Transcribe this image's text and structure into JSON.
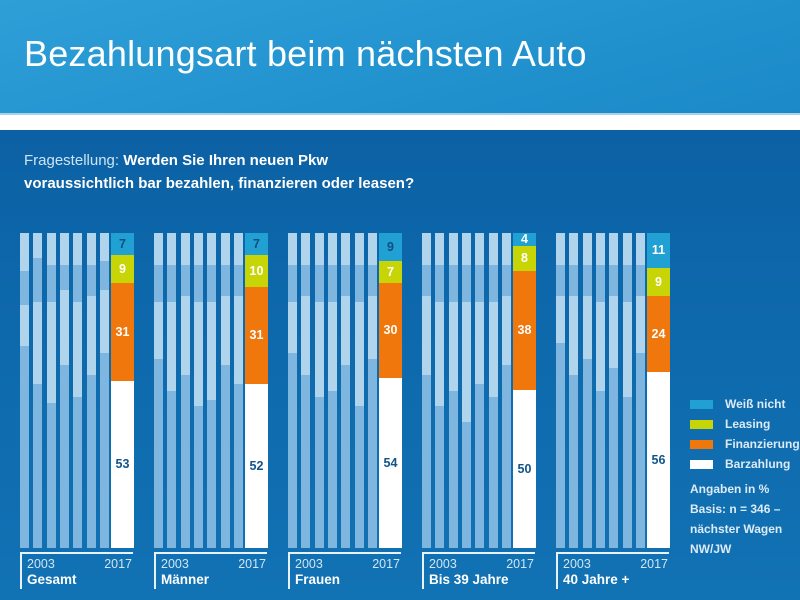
{
  "title": "Bezahlungsart beim nächsten Auto",
  "question": {
    "prefix": "Fragestellung:",
    "bold_line1": "Werden Sie Ihren neuen Pkw",
    "bold_line2": "voraussichtlich bar bezahlen, finanzieren oder leasen?"
  },
  "chart_data": {
    "type": "bar",
    "stacked": true,
    "unit": "%",
    "categories": [
      "Gesamt",
      "Männer",
      "Frauen",
      "Bis 39 Jahre",
      "40 Jahre +"
    ],
    "axis": {
      "start_year": "2003",
      "end_year": "2017"
    },
    "series": [
      {
        "name": "Weiß nicht",
        "color": "#21a1d3",
        "values": [
          7,
          7,
          9,
          4,
          11
        ],
        "label_colors": [
          "#0e4e81",
          "#0e4e81",
          "#0e4e81",
          "#ffffff",
          "#ffffff"
        ]
      },
      {
        "name": "Leasing",
        "color": "#c7d406",
        "values": [
          9,
          10,
          7,
          8,
          9
        ],
        "label_colors": [
          "#ffffff",
          "#ffffff",
          "#ffffff",
          "#ffffff",
          "#ffffff"
        ]
      },
      {
        "name": "Finanzierung",
        "color": "#f0770b",
        "values": [
          31,
          31,
          30,
          38,
          24
        ],
        "label_colors": [
          "#ffffff",
          "#ffffff",
          "#ffffff",
          "#ffffff",
          "#ffffff"
        ]
      },
      {
        "name": "Barzahlung",
        "color": "#ffffff",
        "values": [
          53,
          52,
          54,
          50,
          56
        ],
        "label_colors": [
          "#11548a",
          "#11548a",
          "#11548a",
          "#11548a",
          "#11548a"
        ]
      }
    ],
    "history_years_shown_as_muted_bars": [
      "2003",
      "2005",
      "2007",
      "2009",
      "2011",
      "2013",
      "2015"
    ],
    "history_bars": {
      "Gesamt": [
        [
          64,
          13,
          11,
          12
        ],
        [
          52,
          26,
          14,
          8
        ],
        [
          46,
          32,
          12,
          10
        ],
        [
          58,
          24,
          8,
          10
        ],
        [
          48,
          30,
          12,
          10
        ],
        [
          55,
          25,
          10,
          10
        ],
        [
          62,
          20,
          9,
          9
        ]
      ],
      "Männer": [
        [
          60,
          18,
          12,
          10
        ],
        [
          50,
          28,
          12,
          10
        ],
        [
          55,
          25,
          10,
          10
        ],
        [
          45,
          33,
          12,
          10
        ],
        [
          47,
          31,
          12,
          10
        ],
        [
          58,
          22,
          10,
          10
        ],
        [
          52,
          28,
          10,
          10
        ]
      ],
      "Frauen": [
        [
          62,
          16,
          12,
          10
        ],
        [
          55,
          25,
          10,
          10
        ],
        [
          48,
          30,
          12,
          10
        ],
        [
          50,
          28,
          12,
          10
        ],
        [
          58,
          22,
          10,
          10
        ],
        [
          45,
          33,
          12,
          10
        ],
        [
          60,
          20,
          10,
          10
        ]
      ],
      "Bis 39 Jahre": [
        [
          55,
          25,
          10,
          10
        ],
        [
          45,
          33,
          12,
          10
        ],
        [
          50,
          28,
          12,
          10
        ],
        [
          40,
          38,
          12,
          10
        ],
        [
          52,
          26,
          12,
          10
        ],
        [
          48,
          30,
          12,
          10
        ],
        [
          58,
          22,
          10,
          10
        ]
      ],
      "40 Jahre +": [
        [
          65,
          15,
          10,
          10
        ],
        [
          55,
          25,
          10,
          10
        ],
        [
          60,
          20,
          10,
          10
        ],
        [
          50,
          28,
          12,
          10
        ],
        [
          57,
          23,
          10,
          10
        ],
        [
          48,
          30,
          12,
          10
        ],
        [
          62,
          18,
          10,
          10
        ]
      ]
    },
    "history_bar_colors": {
      "medium": "#7fb6df",
      "light": "#b1d4ed"
    }
  },
  "legend": [
    {
      "label": "Weiß nicht",
      "color": "#21a1d3"
    },
    {
      "label": "Leasing",
      "color": "#c7d406"
    },
    {
      "label": "Finanzierung",
      "color": "#f0770b"
    },
    {
      "label": "Barzahlung",
      "color": "#ffffff"
    }
  ],
  "notes": [
    "Angaben in %",
    "Basis: n = 346 –",
    "nächster Wagen",
    "NW/JW"
  ]
}
